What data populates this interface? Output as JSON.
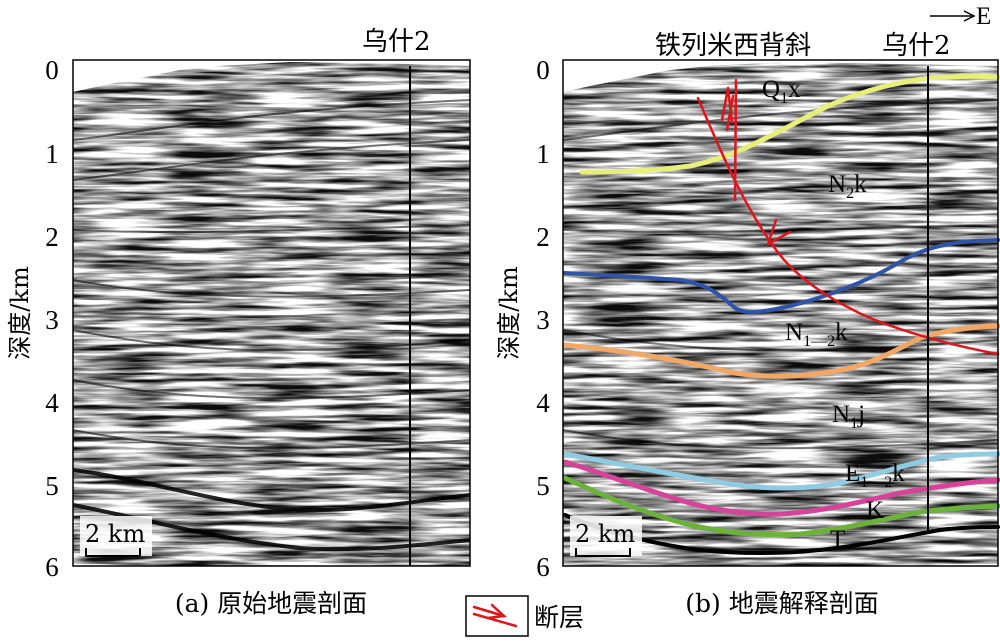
{
  "panel_a": {
    "well_label": "乌什2",
    "y_axis_title": "深度/km",
    "y_ticks": [
      "0",
      "1",
      "2",
      "3",
      "4",
      "5",
      "6"
    ],
    "scale_bar": "2 km",
    "caption": "(a) 原始地震剖面"
  },
  "panel_b": {
    "anticline_label": "铁列米西背斜",
    "well_label": "乌什2",
    "direction": "E",
    "y_axis_title": "深度/km",
    "y_ticks": [
      "0",
      "1",
      "2",
      "3",
      "4",
      "5",
      "6"
    ],
    "scale_bar": "2 km",
    "caption": "(b) 地震解释剖面",
    "formations": [
      {
        "base": "Q",
        "sub": "1",
        "suffix": "x",
        "color": "#e8ee7a"
      },
      {
        "base": "N",
        "sub": "2",
        "suffix": "k",
        "color": ""
      },
      {
        "base": "N",
        "sub": "1—2",
        "suffix": "k",
        "color": "#2f55a8"
      },
      {
        "base": "N",
        "sub": "1",
        "suffix": "j",
        "color": "#f2a766"
      },
      {
        "base": "E",
        "sub": "1—2",
        "suffix": "k",
        "color": "#8fcbe3"
      },
      {
        "base": "K",
        "sub": "",
        "suffix": "",
        "color": "#d6449a"
      },
      {
        "base": "T",
        "sub": "",
        "suffix": "",
        "color": "#6bb23b"
      }
    ],
    "fault_color": "#e0141c",
    "base_color": "#000000"
  },
  "legend": {
    "fault_label": "断层"
  }
}
